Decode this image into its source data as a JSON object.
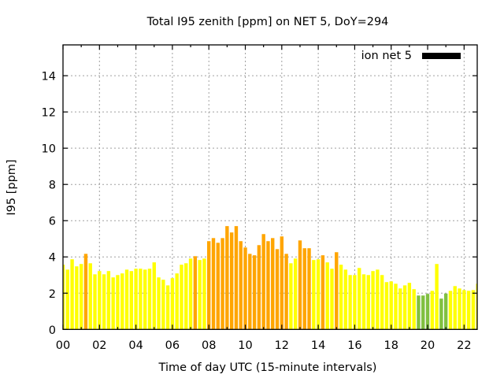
{
  "chart_data": {
    "type": "bar",
    "title": "Total I95 zenith [ppm] on NET 5, DoY=294",
    "xlabel": "Time of day UTC (15-minute intervals)",
    "ylabel": "I95 [ppm]",
    "xlim_intervals": [
      0,
      90.88
    ],
    "ylim": [
      0,
      15.7
    ],
    "grid": true,
    "legend": {
      "position": "top-right",
      "label": "ion net 5",
      "color": "#000000"
    },
    "yticks": [
      "0",
      "2",
      "4",
      "6",
      "8",
      "10",
      "12",
      "14"
    ],
    "ytick_values": [
      0,
      2,
      4,
      6,
      8,
      10,
      12,
      14
    ],
    "xticks": [
      "00",
      "02",
      "04",
      "06",
      "08",
      "10",
      "12",
      "14",
      "16",
      "18",
      "20",
      "22"
    ],
    "xtick_hours": [
      0,
      2,
      4,
      6,
      8,
      10,
      12,
      14,
      16,
      18,
      20,
      22
    ],
    "colors": {
      "high": "#ffa500",
      "mid": "#ffff00",
      "low": "#80c040"
    },
    "thresholds": {
      "high": 4.0,
      "low": 1.99
    },
    "interval_minutes": 15,
    "values": [
      3.57,
      3.3,
      3.87,
      3.48,
      3.61,
      4.17,
      3.65,
      3.04,
      3.22,
      3.04,
      3.22,
      2.87,
      3.0,
      3.09,
      3.3,
      3.22,
      3.35,
      3.35,
      3.3,
      3.35,
      3.7,
      2.87,
      2.74,
      2.43,
      2.83,
      3.09,
      3.57,
      3.65,
      3.91,
      4.04,
      3.83,
      3.91,
      4.87,
      5.04,
      4.78,
      5.04,
      5.7,
      5.35,
      5.7,
      4.87,
      4.52,
      4.17,
      4.09,
      4.65,
      5.26,
      4.87,
      5.04,
      4.43,
      5.13,
      4.17,
      3.65,
      3.91,
      4.91,
      4.48,
      4.48,
      3.83,
      3.87,
      4.09,
      3.7,
      3.35,
      4.26,
      3.57,
      3.3,
      3.0,
      3.0,
      3.39,
      3.04,
      3.0,
      3.22,
      3.3,
      3.0,
      2.61,
      2.65,
      2.52,
      2.26,
      2.43,
      2.57,
      2.22,
      1.87,
      1.87,
      1.96,
      2.13,
      3.61,
      1.7,
      1.98,
      2.13,
      2.39,
      2.26,
      2.17,
      2.13,
      2.17,
      2.52
    ]
  }
}
